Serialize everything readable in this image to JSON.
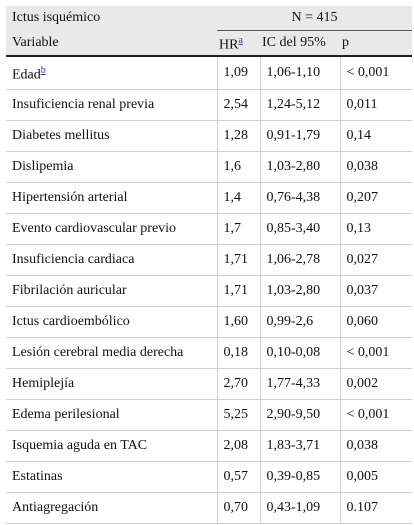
{
  "table": {
    "group_label": "Ictus isquémico",
    "n_label": "N = 415",
    "headers": {
      "variable": "Variable",
      "hr": "HR",
      "hr_note": "a",
      "ic": "IC del 95%",
      "p": "p"
    },
    "rows": [
      {
        "variable": "Edad",
        "note": "b",
        "hr": "1,09",
        "ic": "1,06-1,10",
        "p": "< 0,001"
      },
      {
        "variable": "Insuficiencia renal previa",
        "hr": "2,54",
        "ic": "1,24-5,12",
        "p": "0,011"
      },
      {
        "variable": "Diabetes mellitus",
        "hr": "1,28",
        "ic": "0,91-1,79",
        "p": "0,14"
      },
      {
        "variable": "Dislipemia",
        "hr": "1,6",
        "ic": "1,03-2,80",
        "p": "0,038"
      },
      {
        "variable": "Hipertensión arterial",
        "hr": "1,4",
        "ic": "0,76-4,38",
        "p": "0,207"
      },
      {
        "variable": "Evento cardiovascular previo",
        "hr": "1,7",
        "ic": "0,85-3,40",
        "p": "0,13"
      },
      {
        "variable": "Insuficiencia cardiaca",
        "hr": "1,71",
        "ic": "1,06-2,78",
        "p": "0,027"
      },
      {
        "variable": "Fibrilación auricular",
        "hr": "1,71",
        "ic": "1,03-2,80",
        "p": "0,037"
      },
      {
        "variable": "Ictus cardioembólico",
        "hr": "1,60",
        "ic": "0,99-2,6",
        "p": "0,060"
      },
      {
        "variable": "Lesión cerebral media derecha",
        "hr": "0,18",
        "ic": "0,10-0,08",
        "p": "< 0,001"
      },
      {
        "variable": "Hemiplejía",
        "hr": "2,70",
        "ic": "1,77-4,33",
        "p": "0,002"
      },
      {
        "variable": "Edema perilesional",
        "hr": "5,25",
        "ic": "2,90-9,50",
        "p": "< 0,001"
      },
      {
        "variable": "Isquemia aguda en TAC",
        "hr": "2,08",
        "ic": "1,83-3,71",
        "p": "0,038"
      },
      {
        "variable": "Estatinas",
        "hr": "0,57",
        "ic": "0,39-0,85",
        "p": "0,005"
      },
      {
        "variable": "Antiagregación",
        "hr": "0,70",
        "ic": "0,43-1,09",
        "p": "0.107"
      }
    ]
  }
}
